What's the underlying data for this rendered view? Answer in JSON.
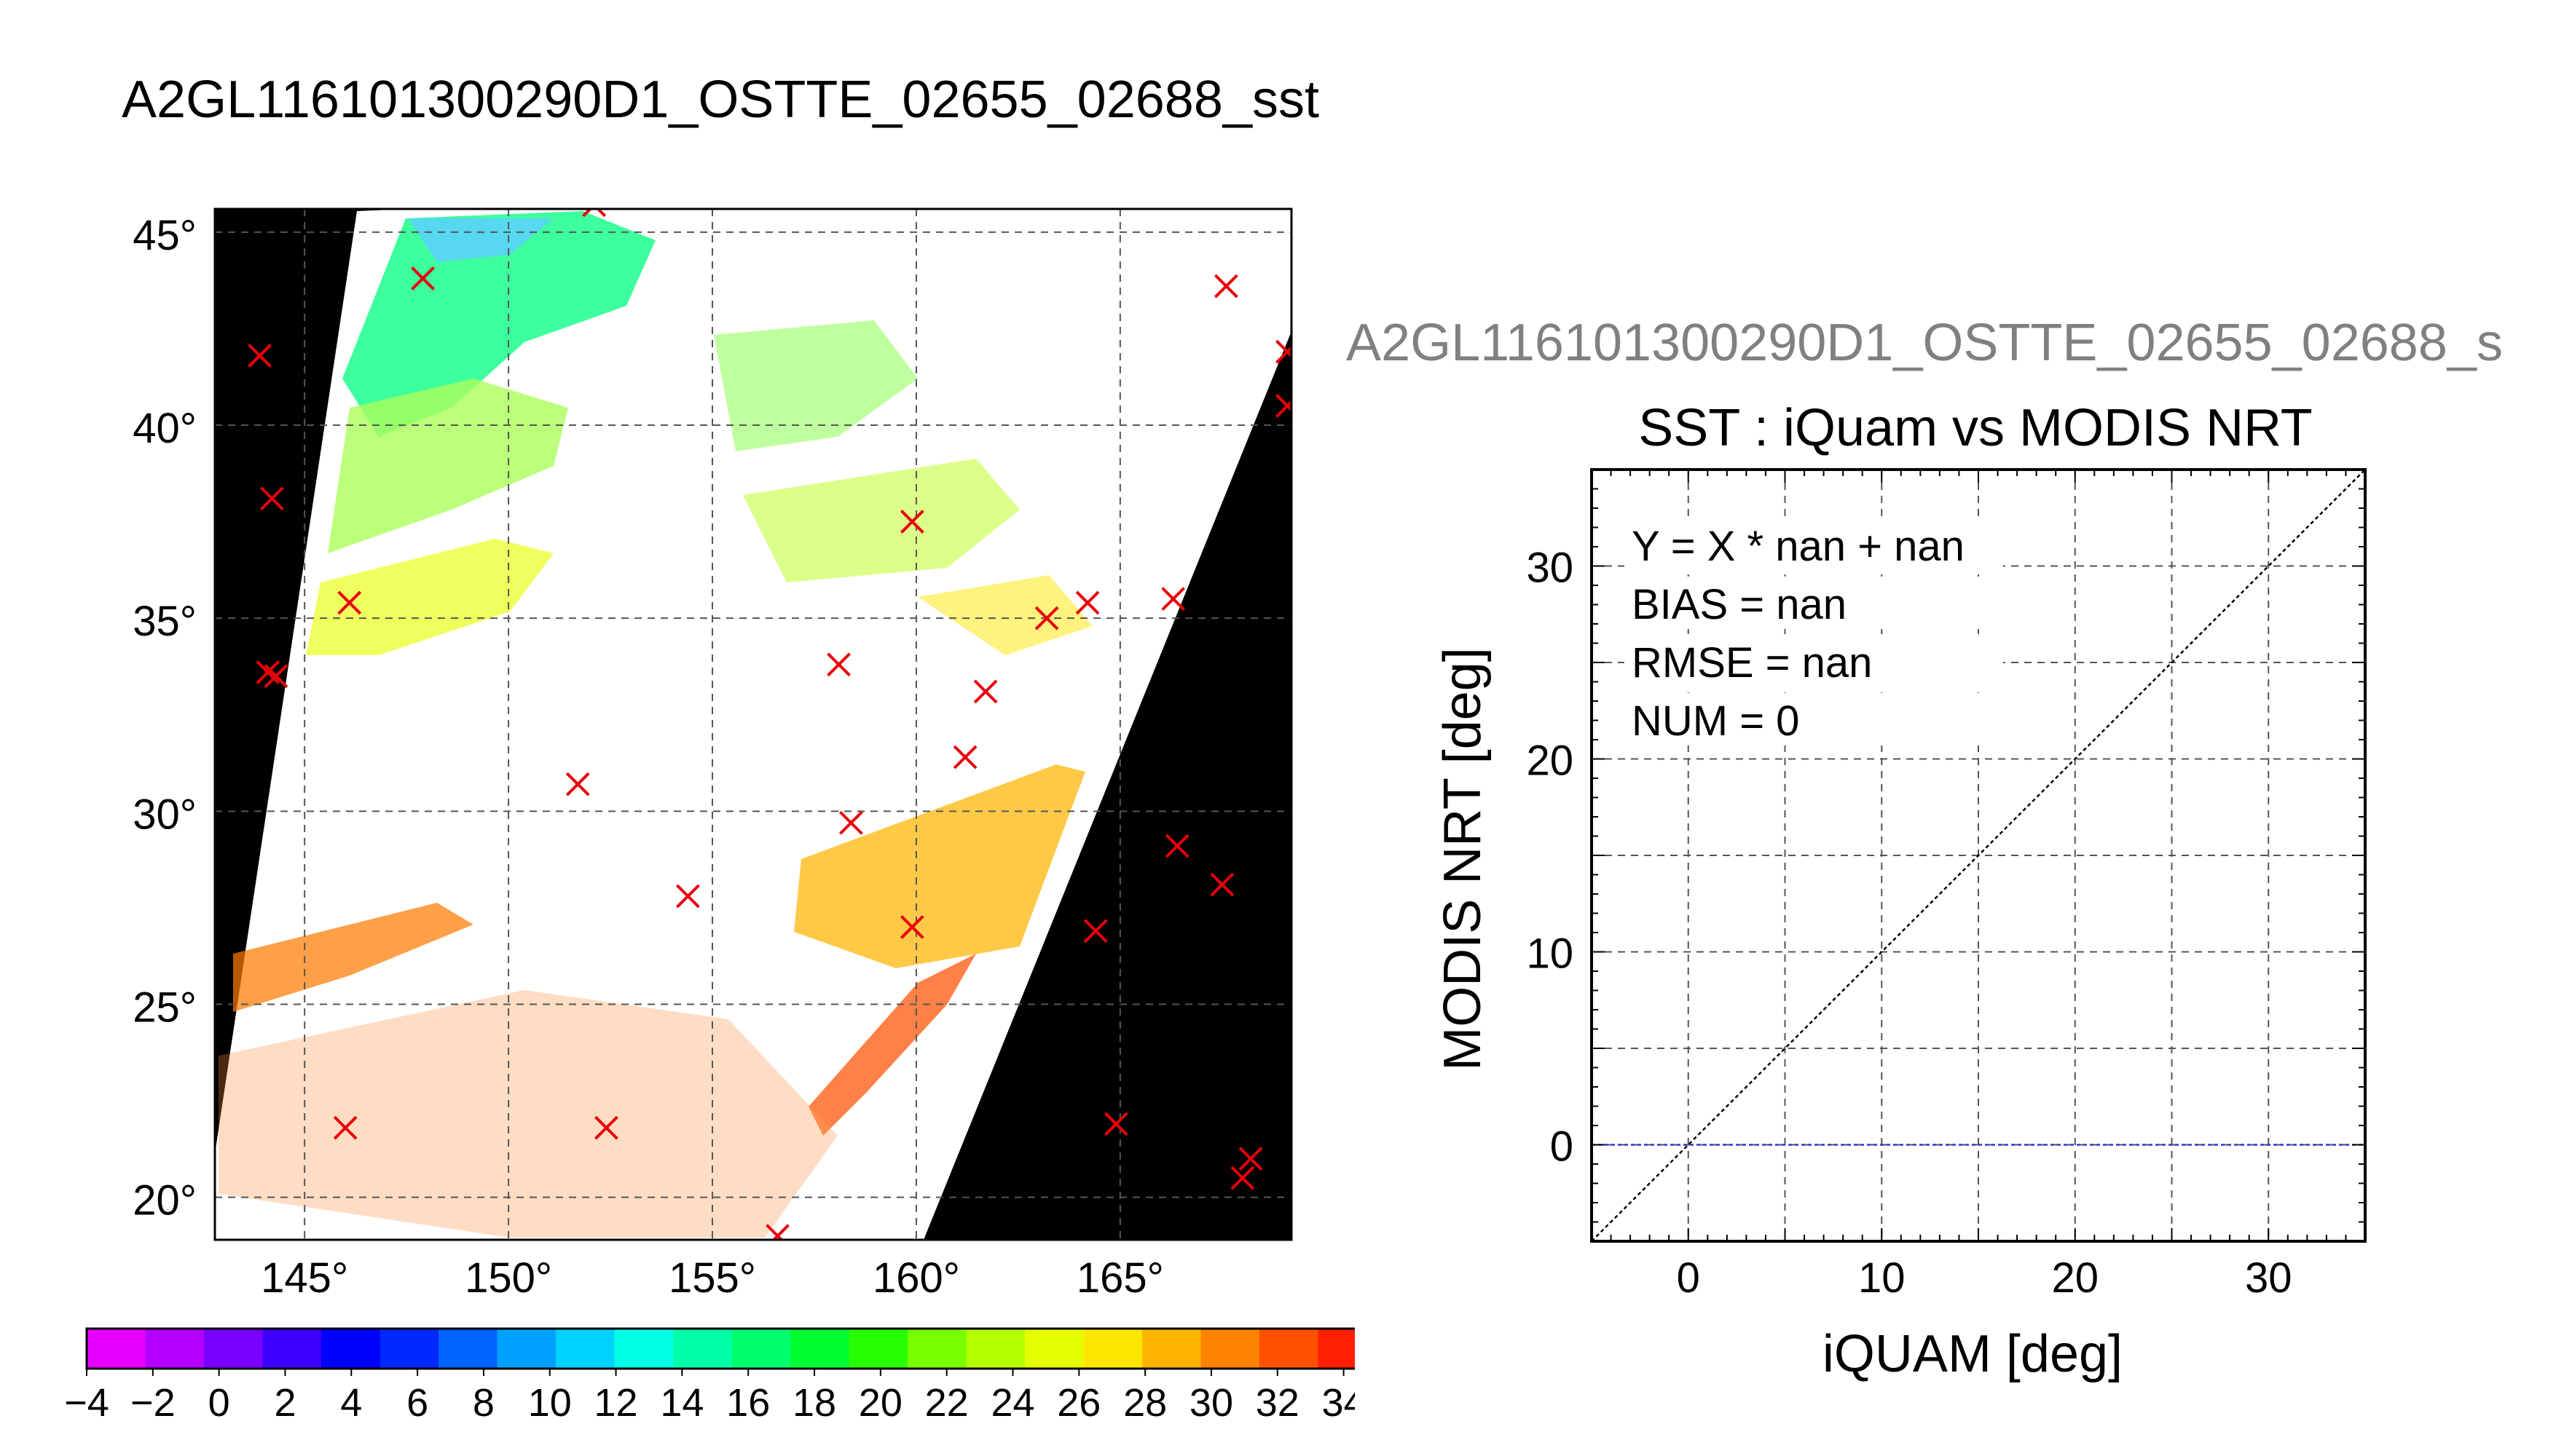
{
  "title": "A2GL116101300290D1_OSTTE_02655_02688_sst",
  "right_header": "A2GL116101300290D1_OSTTE_02655_02688_s",
  "chart_data": [
    {
      "type": "map",
      "lon_ticks": [
        "145°",
        "150°",
        "155°",
        "160°",
        "165°"
      ],
      "lat_ticks": [
        "45°",
        "40°",
        "35°",
        "30°",
        "25°",
        "20°"
      ],
      "xlim": [
        142.8,
        169.2
      ],
      "ylim": [
        18.9,
        45.6
      ],
      "points": [
        [
          143.9,
          41.8
        ],
        [
          144.2,
          38.1
        ],
        [
          144.1,
          33.6
        ],
        [
          144.3,
          33.5
        ],
        [
          146.1,
          35.4
        ],
        [
          147.9,
          43.8
        ],
        [
          152.1,
          45.7
        ],
        [
          151.7,
          30.7
        ],
        [
          154.4,
          27.8
        ],
        [
          158.1,
          33.8
        ],
        [
          158.4,
          29.7
        ],
        [
          159.9,
          37.5
        ],
        [
          159.9,
          27.0
        ],
        [
          161.2,
          31.4
        ],
        [
          161.7,
          33.1
        ],
        [
          163.2,
          35.0
        ],
        [
          164.2,
          35.4
        ],
        [
          164.4,
          26.9
        ],
        [
          164.9,
          21.9
        ],
        [
          166.3,
          35.5
        ],
        [
          166.4,
          29.1
        ],
        [
          167.6,
          43.6
        ],
        [
          167.5,
          28.1
        ],
        [
          168.2,
          21.0
        ],
        [
          168.0,
          20.5
        ],
        [
          169.1,
          41.9
        ],
        [
          169.1,
          40.5
        ],
        [
          146.0,
          21.8
        ],
        [
          152.4,
          21.8
        ],
        [
          156.6,
          19.0
        ]
      ],
      "colorbar": {
        "min": -4,
        "max": 35,
        "tick_labels": [
          "−4",
          "−2",
          "0",
          "2",
          "4",
          "6",
          "8",
          "10",
          "12",
          "14",
          "16",
          "18",
          "20",
          "22",
          "24",
          "26",
          "28",
          "30",
          "32",
          "34"
        ],
        "colors": [
          "#e600ff",
          "#b400ff",
          "#7800ff",
          "#3c00ff",
          "#0000ff",
          "#0028ff",
          "#0064ff",
          "#00a0ff",
          "#00d2ff",
          "#00ffe6",
          "#00ffaa",
          "#00ff6e",
          "#00ff32",
          "#28ff00",
          "#78ff00",
          "#b4ff00",
          "#e6ff00",
          "#ffe600",
          "#ffb400",
          "#ff8200",
          "#ff5000",
          "#ff1e00"
        ]
      }
    },
    {
      "type": "scatter",
      "title": "SST : iQuam vs MODIS NRT",
      "xlabel": "iQUAM [deg]",
      "ylabel": "MODIS NRT [deg]",
      "xlim": [
        -5,
        35
      ],
      "ylim": [
        -5,
        35
      ],
      "x_ticks": [
        "0",
        "10",
        "20",
        "30"
      ],
      "y_ticks": [
        "0",
        "10",
        "20",
        "30"
      ],
      "x": [],
      "y": [],
      "reference_line": "Y = X",
      "zero_line_color": "#3333cc",
      "stats": [
        "Y = X * nan + nan",
        "BIAS = nan",
        "RMSE = nan",
        "NUM = 0"
      ]
    }
  ]
}
